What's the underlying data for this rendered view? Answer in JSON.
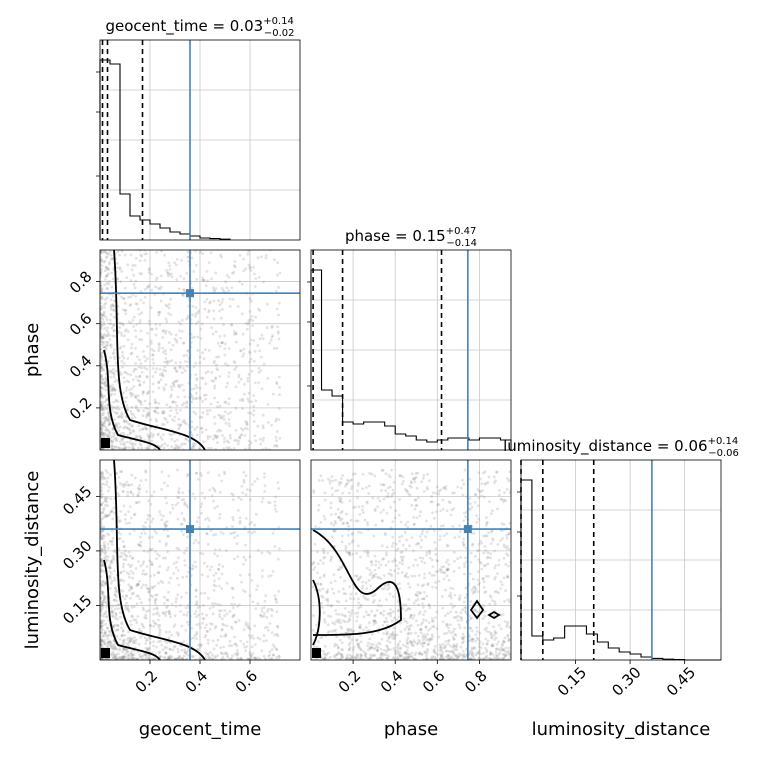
{
  "chart_data": {
    "type": "corner",
    "parameters": [
      "geocent_time",
      "phase",
      "luminosity_distance"
    ],
    "titles": [
      {
        "name": "geocent_time",
        "median": "0.03",
        "plus": "+0.14",
        "minus": "−0.02"
      },
      {
        "name": "phase",
        "median": "0.15",
        "plus": "+0.47",
        "minus": "−0.14"
      },
      {
        "name": "luminosity_distance",
        "median": "0.06",
        "plus": "+0.14",
        "minus": "−0.06"
      }
    ],
    "axis_ranges": {
      "geocent_time": [
        0.0,
        0.8
      ],
      "phase": [
        0.0,
        0.95
      ],
      "luminosity_distance": [
        0.0,
        0.55
      ]
    },
    "ticks": {
      "geocent_time": [
        "0.2",
        "0.4",
        "0.6"
      ],
      "phase": [
        "0.2",
        "0.4",
        "0.6",
        "0.8"
      ],
      "luminosity_distance": [
        "0.15",
        "0.30",
        "0.45"
      ]
    },
    "truths": {
      "geocent_time": 0.36,
      "phase": 0.745,
      "luminosity_distance": 0.36
    },
    "quantile_lines": {
      "geocent_time": [
        0.01,
        0.03,
        0.17
      ],
      "phase": [
        0.01,
        0.15,
        0.62
      ],
      "luminosity_distance": [
        0.0,
        0.06,
        0.2
      ]
    },
    "histograms": {
      "geocent_time": {
        "edges": [
          0.0,
          0.04,
          0.08,
          0.12,
          0.16,
          0.2,
          0.24,
          0.28,
          0.32,
          0.36,
          0.4,
          0.44,
          0.48,
          0.52
        ],
        "heights": [
          0.9,
          0.88,
          0.23,
          0.12,
          0.1,
          0.08,
          0.06,
          0.04,
          0.03,
          0.02,
          0.01,
          0.007,
          0.004
        ]
      },
      "phase": {
        "edges": [
          0.0,
          0.05,
          0.1,
          0.15,
          0.2,
          0.25,
          0.3,
          0.35,
          0.4,
          0.45,
          0.5,
          0.55,
          0.6,
          0.65,
          0.7,
          0.75,
          0.8,
          0.85,
          0.9,
          0.95
        ],
        "heights": [
          0.9,
          0.3,
          0.27,
          0.14,
          0.13,
          0.14,
          0.14,
          0.12,
          0.08,
          0.07,
          0.05,
          0.04,
          0.05,
          0.06,
          0.06,
          0.05,
          0.06,
          0.06,
          0.05
        ]
      },
      "luminosity_distance": {
        "edges": [
          0.0,
          0.03,
          0.06,
          0.09,
          0.12,
          0.15,
          0.18,
          0.21,
          0.24,
          0.27,
          0.3,
          0.33,
          0.36,
          0.39,
          0.42,
          0.45,
          0.48,
          0.51,
          0.55
        ],
        "heights": [
          0.9,
          0.12,
          0.1,
          0.11,
          0.17,
          0.17,
          0.13,
          0.09,
          0.06,
          0.04,
          0.03,
          0.015,
          0.008,
          0.004,
          0.002,
          0.0,
          0.0,
          0.0
        ]
      }
    },
    "samples_seed": 7
  }
}
